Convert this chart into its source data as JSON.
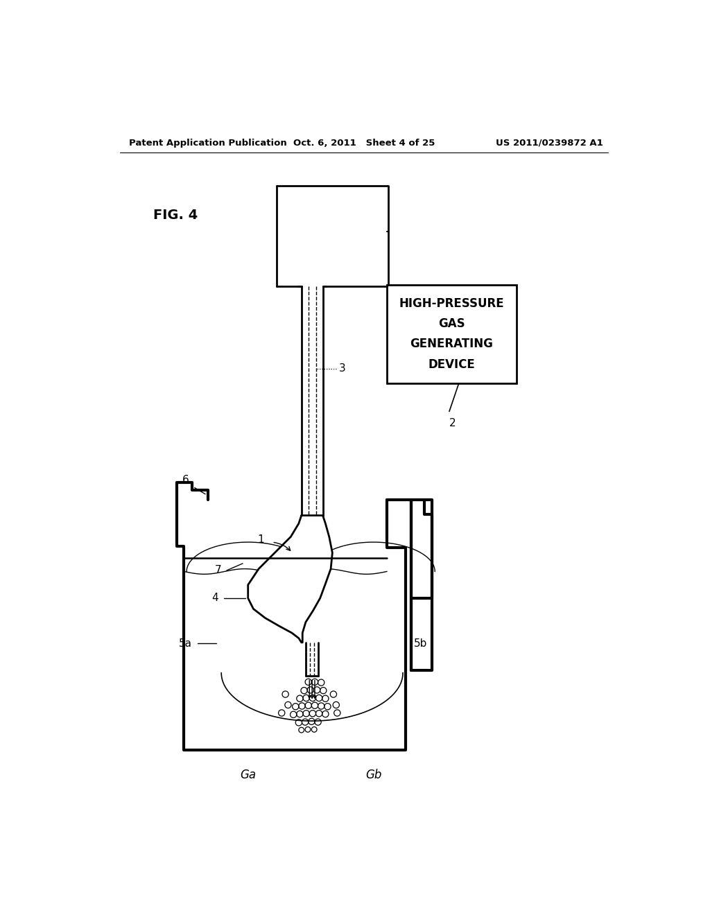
{
  "bg_color": "#ffffff",
  "lc": "#000000",
  "header_left": "Patent Application Publication",
  "header_center": "Oct. 6, 2011   Sheet 4 of 25",
  "header_right": "US 2011/0239872 A1",
  "fig_label": "FIG. 4",
  "box_text_lines": [
    "HIGH-PRESSURE",
    "GAS",
    "GENERATING",
    "DEVICE"
  ],
  "label_1": "1",
  "label_2": "2",
  "label_3": "3",
  "label_4": "4",
  "label_5a": "5a",
  "label_5b": "5b",
  "label_6": "6",
  "label_7": "7",
  "label_Ga": "Ga",
  "label_Gb": "Gb"
}
